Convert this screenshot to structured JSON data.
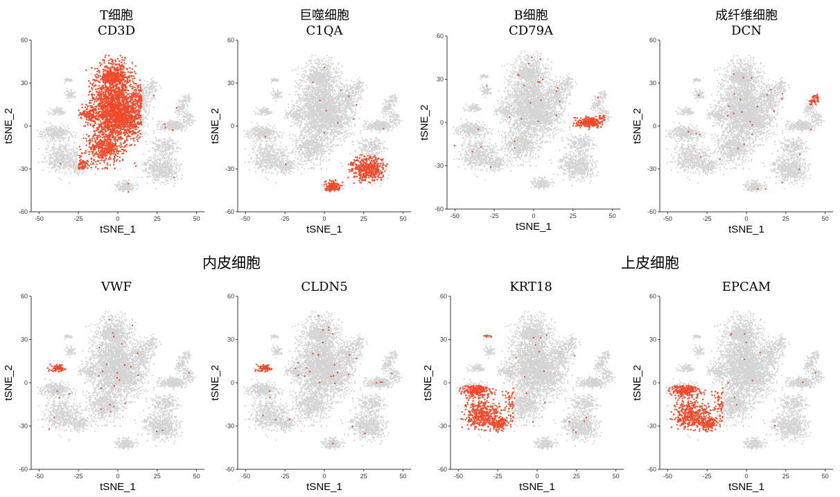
{
  "colors": {
    "background_cells": "#d4d4d4",
    "expressing_cells": "#f04a2a",
    "axis": "#333333"
  },
  "group_titles": [
    "内皮细胞",
    "上皮细胞"
  ],
  "chart_data": [
    {
      "type": "scatter",
      "cell_type": "T细胞",
      "gene": "CD3D",
      "xlabel": "tSNE_1",
      "ylabel": "tSNE_2",
      "xlim": [
        -55,
        55
      ],
      "ylim": [
        -60,
        60
      ],
      "xticks": [
        -50,
        -25,
        0,
        25,
        50
      ],
      "yticks": [
        -60,
        -30,
        0,
        30,
        60
      ],
      "highlight_regions": [
        {
          "x": [
            -25,
            15
          ],
          "y": [
            -30,
            50
          ],
          "density": "high",
          "note": "main central cluster"
        }
      ]
    },
    {
      "type": "scatter",
      "cell_type": "巨噬细胞",
      "gene": "C1QA",
      "xlabel": "tSNE_1",
      "ylabel": "tSNE_2",
      "xlim": [
        -55,
        55
      ],
      "ylim": [
        -60,
        60
      ],
      "xticks": [
        -50,
        -25,
        0,
        25,
        50
      ],
      "yticks": [
        -60,
        -30,
        0,
        30,
        60
      ],
      "highlight_regions": [
        {
          "x": [
            15,
            40
          ],
          "y": [
            -40,
            -20
          ],
          "density": "high"
        },
        {
          "x": [
            0,
            12
          ],
          "y": [
            -47,
            -37
          ],
          "density": "high"
        }
      ]
    },
    {
      "type": "scatter",
      "cell_type": "B细胞",
      "gene": "CD79A",
      "xlabel": "tSNE_1",
      "ylabel": "tSNE_2",
      "xlim": [
        -55,
        55
      ],
      "ylim": [
        -60,
        60
      ],
      "xticks": [
        -50,
        -25,
        0,
        25,
        50
      ],
      "yticks": [
        -60,
        -30,
        0,
        30,
        60
      ],
      "highlight_regions": [
        {
          "x": [
            25,
            45
          ],
          "y": [
            -5,
            5
          ],
          "density": "high"
        }
      ]
    },
    {
      "type": "scatter",
      "cell_type": "成纤维细胞",
      "gene": "DCN",
      "xlabel": "tSNE_1",
      "ylabel": "tSNE_2",
      "xlim": [
        -55,
        55
      ],
      "ylim": [
        -60,
        60
      ],
      "xticks": [
        -50,
        -25,
        0,
        25,
        50
      ],
      "yticks": [
        -60,
        -30,
        0,
        30,
        60
      ],
      "highlight_regions": [
        {
          "x": [
            40,
            46
          ],
          "y": [
            15,
            22
          ],
          "density": "high"
        }
      ]
    },
    {
      "type": "scatter",
      "cell_type": "",
      "gene": "VWF",
      "xlabel": "tSNE_1",
      "ylabel": "tSNE_2",
      "xlim": [
        -55,
        55
      ],
      "ylim": [
        -60,
        60
      ],
      "xticks": [
        -50,
        -25,
        0,
        25,
        50
      ],
      "yticks": [
        -60,
        -30,
        0,
        30,
        60
      ],
      "highlight_regions": [
        {
          "x": [
            -47,
            -32
          ],
          "y": [
            7,
            13
          ],
          "density": "high"
        }
      ]
    },
    {
      "type": "scatter",
      "cell_type": "",
      "gene": "CLDN5",
      "xlabel": "tSNE_1",
      "ylabel": "tSNE_2",
      "xlim": [
        -55,
        55
      ],
      "ylim": [
        -60,
        60
      ],
      "xticks": [
        -50,
        -25,
        0,
        25,
        50
      ],
      "yticks": [
        -60,
        -30,
        0,
        30,
        60
      ],
      "highlight_regions": [
        {
          "x": [
            -47,
            -32
          ],
          "y": [
            7,
            13
          ],
          "density": "high"
        }
      ]
    },
    {
      "type": "scatter",
      "cell_type": "",
      "gene": "KRT18",
      "xlabel": "tSNE_1",
      "ylabel": "tSNE_2",
      "xlim": [
        -55,
        55
      ],
      "ylim": [
        -60,
        60
      ],
      "xticks": [
        -50,
        -25,
        0,
        25,
        50
      ],
      "yticks": [
        -60,
        -30,
        0,
        30,
        60
      ],
      "highlight_regions": [
        {
          "x": [
            -50,
            -15
          ],
          "y": [
            -35,
            -2
          ],
          "density": "high"
        },
        {
          "x": [
            -35,
            -25
          ],
          "y": [
            30,
            35
          ],
          "density": "medium"
        }
      ]
    },
    {
      "type": "scatter",
      "cell_type": "",
      "gene": "EPCAM",
      "xlabel": "tSNE_1",
      "ylabel": "tSNE_2",
      "xlim": [
        -55,
        55
      ],
      "ylim": [
        -60,
        60
      ],
      "xticks": [
        -50,
        -25,
        0,
        25,
        50
      ],
      "yticks": [
        -60,
        -30,
        0,
        30,
        60
      ],
      "highlight_regions": [
        {
          "x": [
            -50,
            -15
          ],
          "y": [
            -35,
            -2
          ],
          "density": "high"
        }
      ]
    }
  ]
}
